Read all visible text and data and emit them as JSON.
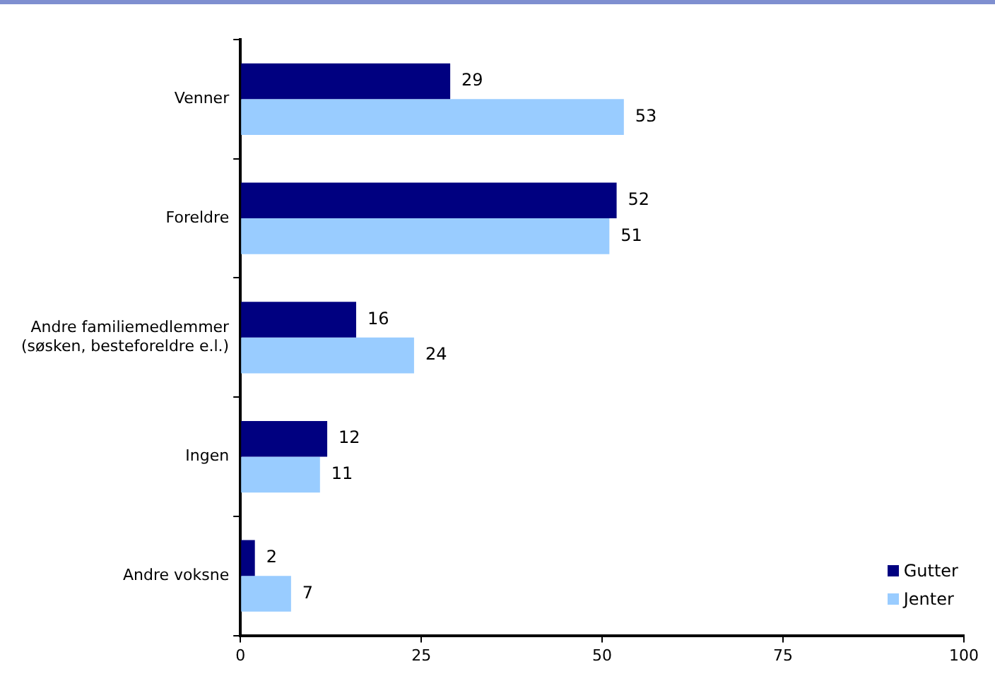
{
  "chart_data": {
    "type": "bar",
    "orientation": "horizontal",
    "categories": [
      "Venner",
      "Foreldre",
      "Andre familiemedlemmer\n(søsken, besteforeldre e.l.)",
      "Ingen",
      "Andre voksne"
    ],
    "series": [
      {
        "name": "Gutter",
        "color": "#000080",
        "values": [
          29,
          52,
          16,
          12,
          2
        ]
      },
      {
        "name": "Jenter",
        "color": "#99ccff",
        "values": [
          53,
          51,
          24,
          11,
          7
        ]
      }
    ],
    "xlim": [
      0,
      100
    ],
    "xticks": [
      0,
      25,
      50,
      75,
      100
    ],
    "grid": false,
    "legend": "bottom right",
    "data_labels": true
  }
}
